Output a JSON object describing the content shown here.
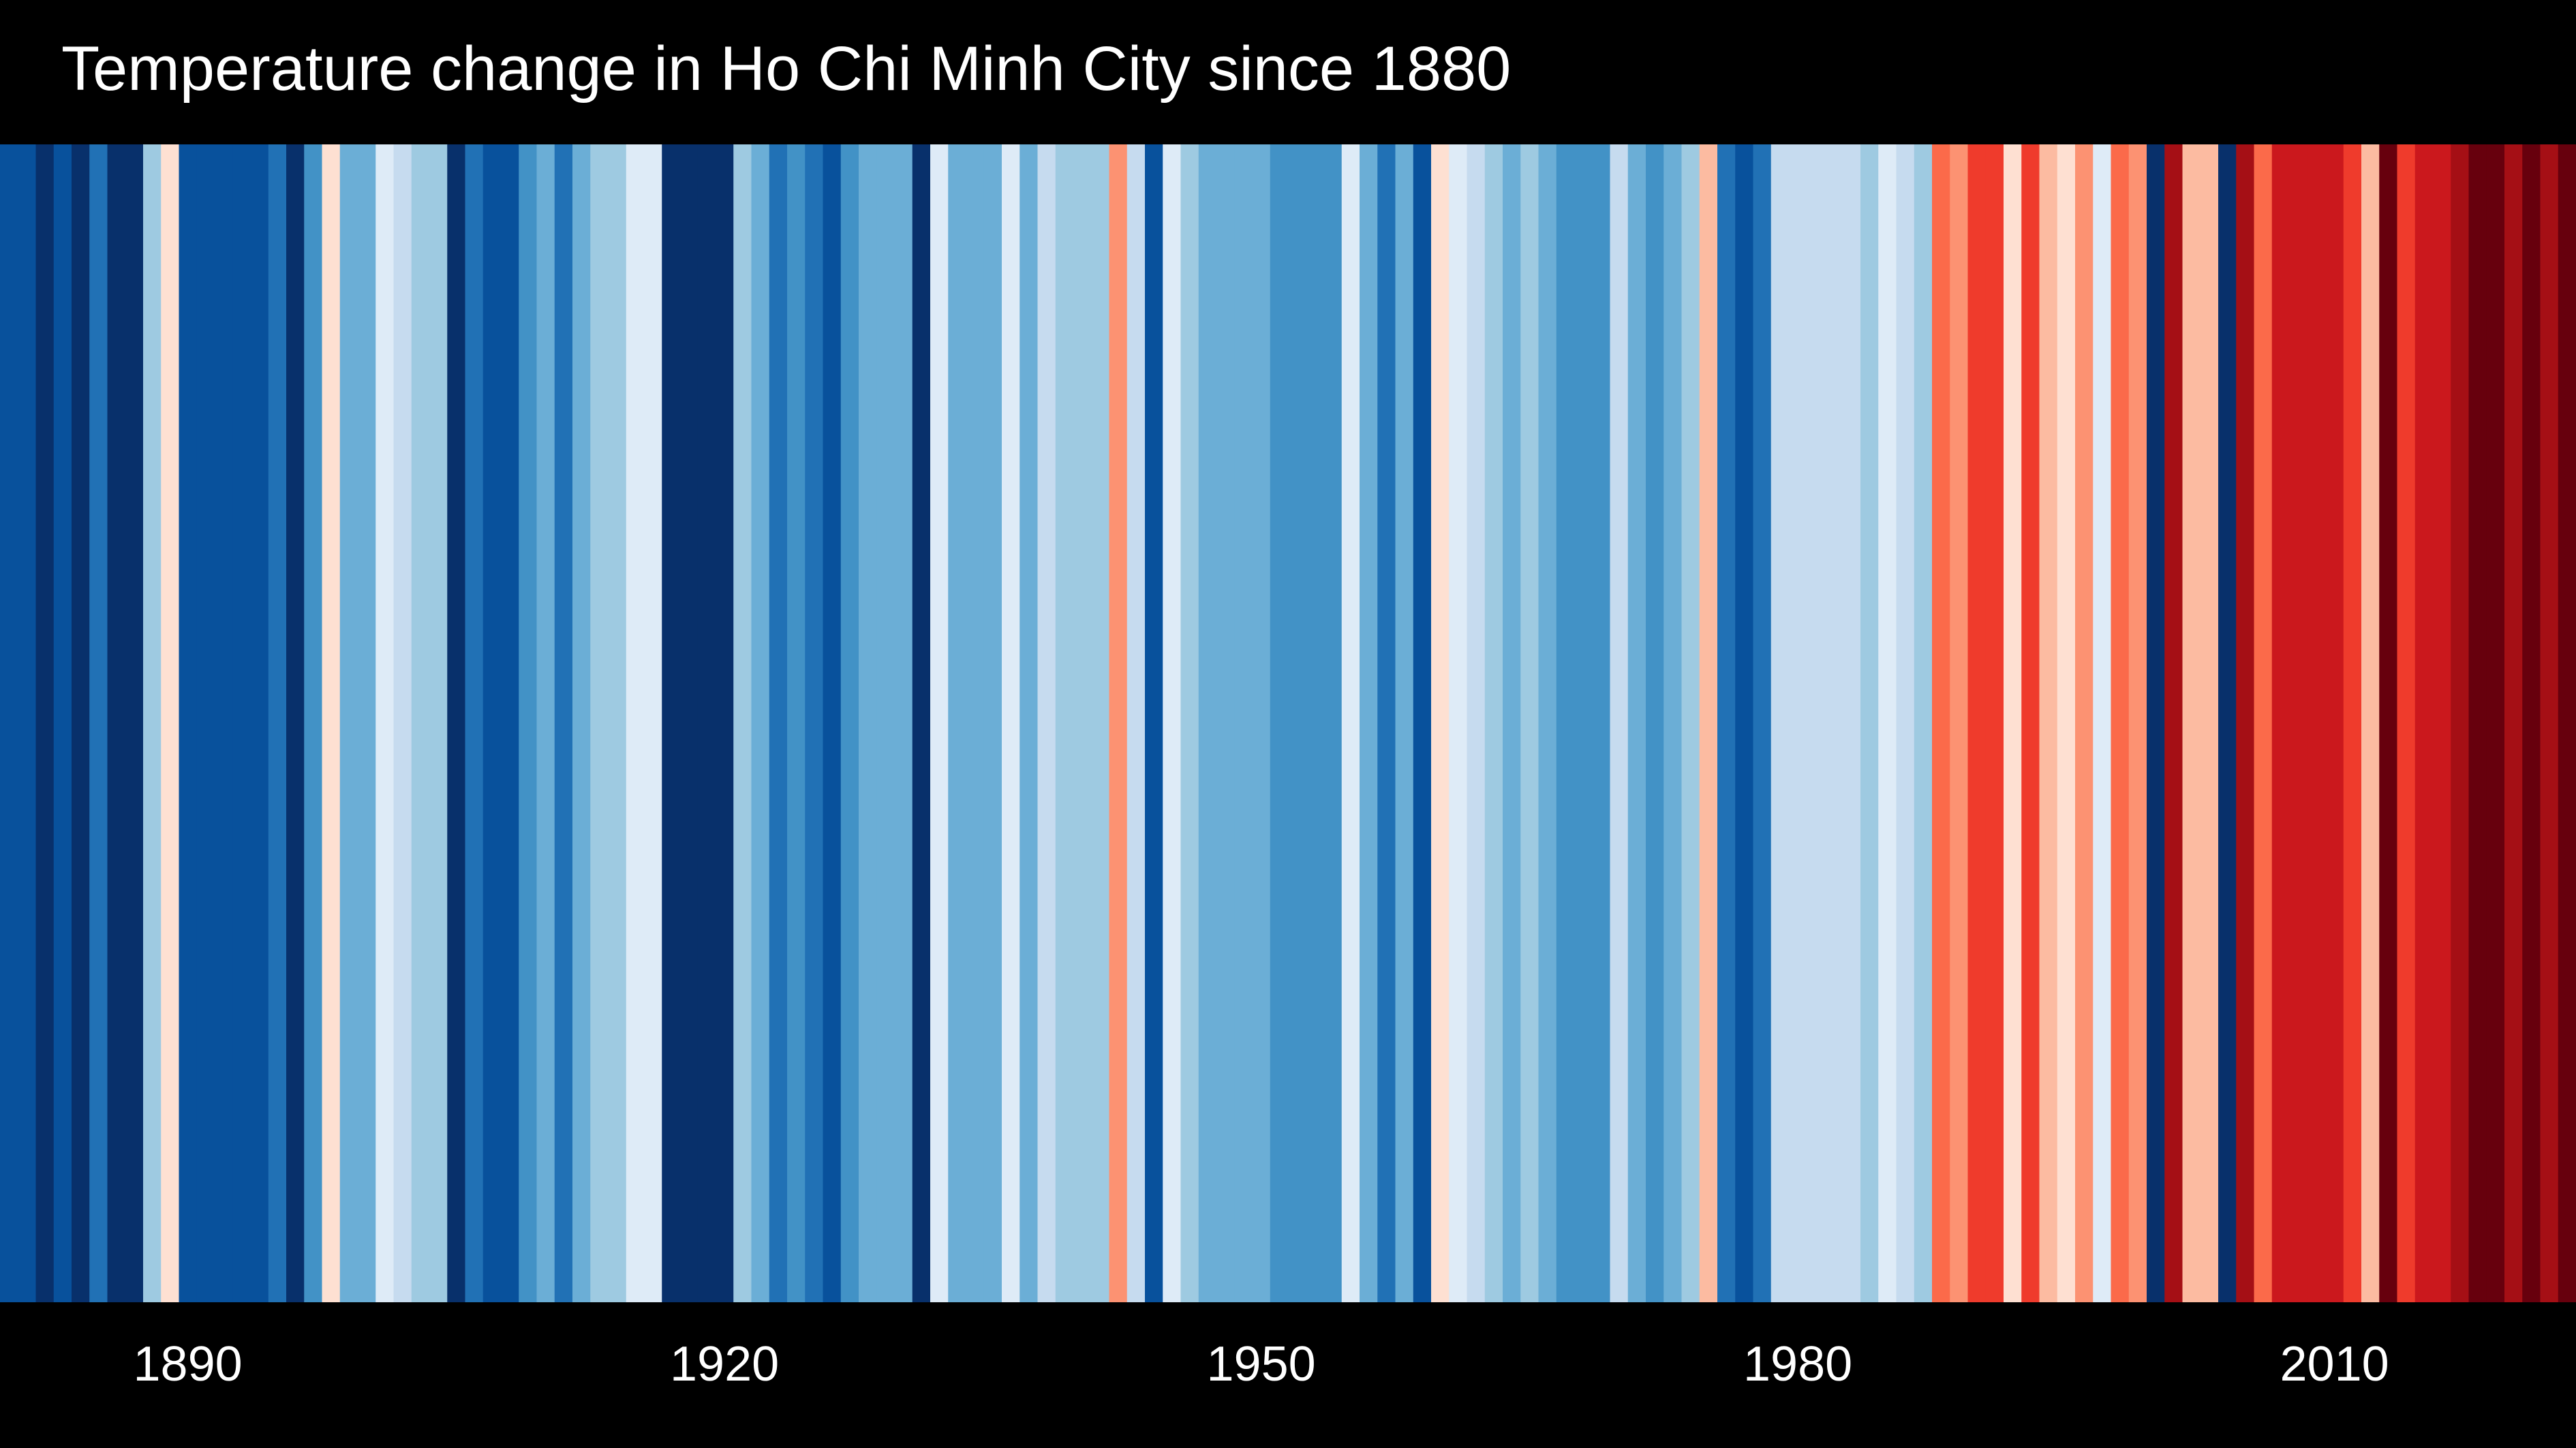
{
  "chart_data": {
    "type": "heatmap",
    "title": "Temperature change in Ho Chi Minh City since 1880",
    "x_start_year": 1880,
    "x_end_year": 2023,
    "xticks": [
      1890,
      1920,
      1950,
      1980,
      2010
    ],
    "colors": [
      "#08306b",
      "#08519c",
      "#2171b5",
      "#4292c6",
      "#6baed6",
      "#9ecae1",
      "#c6dbef",
      "#deebf7",
      "#fee0d2",
      "#fcbba1",
      "#fc9272",
      "#fb6a4a",
      "#ef3b2c",
      "#cb181d",
      "#a50f15",
      "#67000d"
    ],
    "years": [
      1880,
      1881,
      1882,
      1883,
      1884,
      1885,
      1886,
      1887,
      1888,
      1889,
      1890,
      1891,
      1892,
      1893,
      1894,
      1895,
      1896,
      1897,
      1898,
      1899,
      1900,
      1901,
      1902,
      1903,
      1904,
      1905,
      1906,
      1907,
      1908,
      1909,
      1910,
      1911,
      1912,
      1913,
      1914,
      1915,
      1916,
      1917,
      1918,
      1919,
      1920,
      1921,
      1922,
      1923,
      1924,
      1925,
      1926,
      1927,
      1928,
      1929,
      1930,
      1931,
      1932,
      1933,
      1934,
      1935,
      1936,
      1937,
      1938,
      1939,
      1940,
      1941,
      1942,
      1943,
      1944,
      1945,
      1946,
      1947,
      1948,
      1949,
      1950,
      1951,
      1952,
      1953,
      1954,
      1955,
      1956,
      1957,
      1958,
      1959,
      1960,
      1961,
      1962,
      1963,
      1964,
      1965,
      1966,
      1967,
      1968,
      1969,
      1970,
      1971,
      1972,
      1973,
      1974,
      1975,
      1976,
      1977,
      1978,
      1979,
      1980,
      1981,
      1982,
      1983,
      1984,
      1985,
      1986,
      1987,
      1988,
      1989,
      1990,
      1991,
      1992,
      1993,
      1994,
      1995,
      1996,
      1997,
      1998,
      1999,
      2000,
      2001,
      2002,
      2003,
      2004,
      2005,
      2006,
      2007,
      2008,
      2009,
      2010,
      2011,
      2012,
      2013,
      2014,
      2015,
      2016,
      2017,
      2018,
      2019,
      2020,
      2021,
      2022,
      2023
    ],
    "color_index": [
      1,
      1,
      0,
      1,
      0,
      2,
      0,
      0,
      5,
      8,
      1,
      1,
      1,
      1,
      1,
      2,
      0,
      3,
      8,
      4,
      4,
      7,
      6,
      5,
      5,
      0,
      2,
      1,
      1,
      3,
      4,
      2,
      4,
      5,
      5,
      7,
      7,
      0,
      0,
      0,
      0,
      5,
      4,
      2,
      3,
      2,
      1,
      3,
      4,
      4,
      4,
      0,
      7,
      4,
      4,
      4,
      7,
      4,
      6,
      5,
      5,
      5,
      10,
      6,
      1,
      7,
      5,
      4,
      4,
      4,
      4,
      3,
      3,
      3,
      3,
      7,
      4,
      2,
      4,
      1,
      8,
      7,
      6,
      5,
      4,
      5,
      4,
      3,
      3,
      3,
      6,
      4,
      3,
      4,
      5,
      9,
      2,
      1,
      2,
      6,
      6,
      6,
      6,
      6,
      5,
      7,
      6,
      5,
      11,
      10,
      12,
      12,
      8,
      12,
      9,
      8,
      10,
      7,
      11,
      10,
      0,
      14,
      9,
      9,
      0,
      14,
      11,
      13,
      13,
      13,
      13,
      12,
      9,
      15,
      12,
      13,
      13,
      14,
      15,
      15,
      14,
      15,
      14,
      15
    ]
  }
}
